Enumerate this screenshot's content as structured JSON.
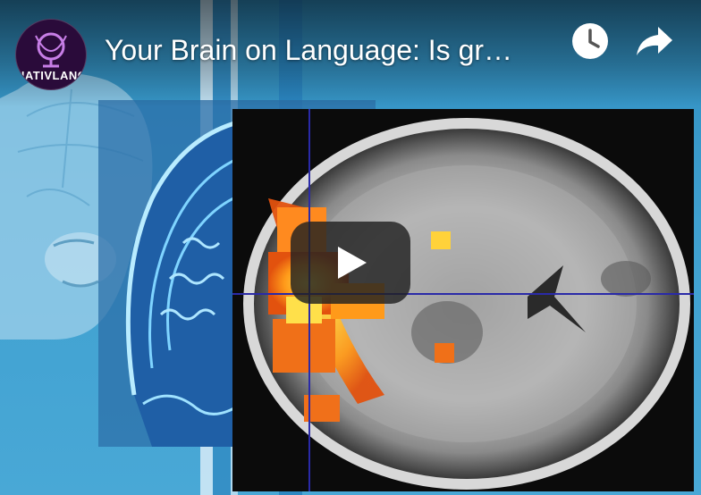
{
  "video": {
    "title": "Your Brain on Language: Is gr…",
    "channel_avatar_text": "NATIVLANG"
  },
  "controls": {
    "watch_later_icon": "clock-icon",
    "share_icon": "share-arrow-icon",
    "play_icon": "play-icon"
  },
  "colors": {
    "play_button_bg": "#212121",
    "avatar_bg": "#2a0b3a",
    "avatar_accent": "#c77ee6",
    "background_blue": "#3f97c4",
    "crosshair": "#2a2aa8"
  }
}
